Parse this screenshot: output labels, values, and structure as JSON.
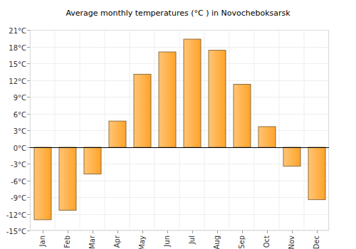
{
  "chart_data": {
    "type": "bar",
    "title": "Average monthly temperatures (°C ) in Novocheboksarsk",
    "categories": [
      "Jan",
      "Feb",
      "Mar",
      "Apr",
      "May",
      "Jun",
      "Jul",
      "Aug",
      "Sep",
      "Oct",
      "Nov",
      "Dec"
    ],
    "values": [
      -13,
      -11.3,
      -4.8,
      4.7,
      13.1,
      17.1,
      19.4,
      17.4,
      11.3,
      3.7,
      -3.4,
      -9.4
    ],
    "color": "#ffa42a",
    "ylim": [
      -15,
      21
    ],
    "yticks": [
      {
        "value": -15,
        "label": "-15°C"
      },
      {
        "value": -12,
        "label": "-12°C"
      },
      {
        "value": -9,
        "label": "-9°C"
      },
      {
        "value": -6,
        "label": "-6°C"
      },
      {
        "value": -3,
        "label": "-3°C"
      },
      {
        "value": 0,
        "label": "0°C"
      },
      {
        "value": 3,
        "label": "3°C"
      },
      {
        "value": 6,
        "label": "6°C"
      },
      {
        "value": 9,
        "label": "9°C"
      },
      {
        "value": 12,
        "label": "12°C"
      },
      {
        "value": 15,
        "label": "15°C"
      },
      {
        "value": 18,
        "label": "18°C"
      },
      {
        "value": 21,
        "label": "21°C"
      }
    ],
    "grid": true
  }
}
